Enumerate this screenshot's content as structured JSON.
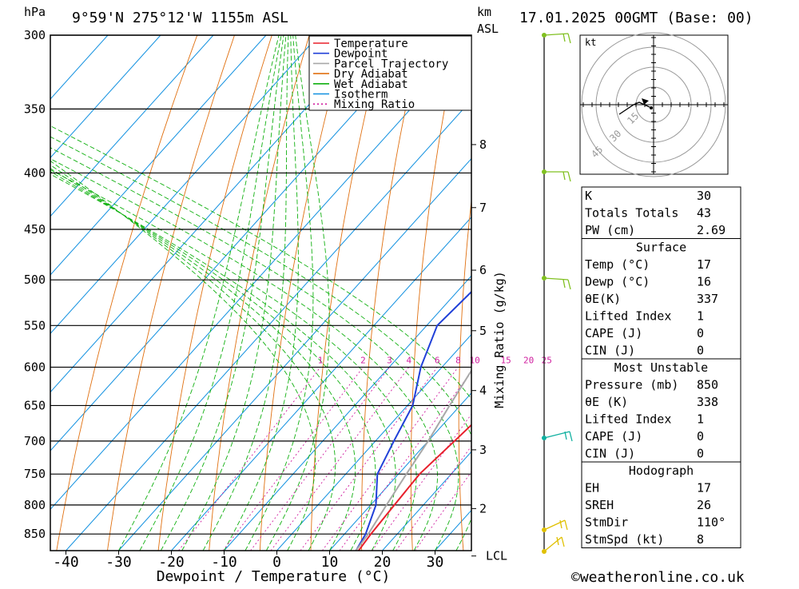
{
  "header": {
    "hpa_label": "hPa",
    "location": "9°59'N  275°12'W  1155m  ASL",
    "km_label": "km",
    "asl_label": "ASL",
    "datetime": "17.01.2025  00GMT  (Base: 00)"
  },
  "chart_data": {
    "type": "line",
    "title": "",
    "xlabel": "Dewpoint / Temperature (°C)",
    "ylabel": "hPa",
    "x_ticks": [
      "-40",
      "-30",
      "-20",
      "-10",
      "0",
      "10",
      "20",
      "30"
    ],
    "p_ticks": [
      "300",
      "350",
      "400",
      "450",
      "500",
      "550",
      "600",
      "650",
      "700",
      "750",
      "800",
      "850"
    ],
    "km_ticks": [
      {
        "label": "8",
        "p": 377
      },
      {
        "label": "7",
        "p": 430
      },
      {
        "label": "6",
        "p": 490
      },
      {
        "label": "5",
        "p": 556
      },
      {
        "label": "4",
        "p": 630
      },
      {
        "label": "3",
        "p": 713
      },
      {
        "label": "2",
        "p": 806
      }
    ],
    "lcl_label": "LCL",
    "mixing_axis_label": "Mixing Ratio (g/kg)",
    "mixing_ratio_labels": [
      "1",
      "2",
      "3",
      "4",
      "6",
      "8",
      "10",
      "15",
      "20",
      "25"
    ],
    "xlim": [
      -44,
      36
    ],
    "plim": [
      300,
      880
    ],
    "series": [
      {
        "name": "Temperature",
        "color": "#e8202c",
        "points": [
          [
            15.5,
            880
          ],
          [
            15,
            850
          ],
          [
            14.5,
            800
          ],
          [
            14,
            750
          ],
          [
            15,
            700
          ],
          [
            16,
            650
          ],
          [
            15,
            600
          ],
          [
            12,
            550
          ],
          [
            7.5,
            500
          ],
          [
            4,
            450
          ],
          [
            1.5,
            400
          ],
          [
            -1,
            350
          ],
          [
            -4,
            300
          ]
        ]
      },
      {
        "name": "Dewpoint",
        "color": "#2040d8",
        "points": [
          [
            15,
            880
          ],
          [
            14,
            850
          ],
          [
            11,
            800
          ],
          [
            6,
            750
          ],
          [
            3.5,
            700
          ],
          [
            1,
            650
          ],
          [
            -4,
            600
          ],
          [
            -8,
            550
          ],
          [
            -7,
            500
          ],
          [
            -6,
            450
          ],
          [
            -8,
            400
          ],
          [
            -11,
            350
          ],
          [
            -25,
            300
          ]
        ]
      },
      {
        "name": "Parcel Trajectory",
        "color": "#a8a8a8",
        "points": [
          [
            15,
            880
          ],
          [
            14.5,
            850
          ],
          [
            13,
            800
          ],
          [
            11.5,
            750
          ],
          [
            10,
            700
          ],
          [
            8,
            650
          ],
          [
            6,
            600
          ],
          [
            4,
            550
          ],
          [
            1,
            500
          ],
          [
            -1.5,
            450
          ],
          [
            -5,
            400
          ],
          [
            -9.5,
            350
          ],
          [
            -16,
            300
          ]
        ]
      }
    ],
    "legend": [
      "Temperature",
      "Dewpoint",
      "Parcel Trajectory",
      "Dry Adiabat",
      "Wet Adiabat",
      "Isotherm",
      "Mixing Ratio"
    ],
    "legend_colors": [
      "#e8202c",
      "#2040d8",
      "#a8a8a8",
      "#e07010",
      "#10b010",
      "#1090e0",
      "#d020a0"
    ],
    "legend_position": "top-center"
  },
  "hodograph": {
    "unit": "kt",
    "ring_labels": [
      "15",
      "30",
      "45"
    ]
  },
  "indices": {
    "rows": [
      {
        "k": "K",
        "v": "30"
      },
      {
        "k": "Totals Totals",
        "v": "43"
      },
      {
        "k": "PW (cm)",
        "v": "2.69"
      }
    ]
  },
  "surface": {
    "title": "Surface",
    "rows": [
      {
        "k": "Temp (°C)",
        "v": "17"
      },
      {
        "k": "Dewp (°C)",
        "v": "16"
      },
      {
        "k": "θE(K)",
        "v": "337"
      },
      {
        "k": "Lifted Index",
        "v": "1"
      },
      {
        "k": "CAPE (J)",
        "v": "0"
      },
      {
        "k": "CIN (J)",
        "v": "0"
      }
    ]
  },
  "most_unstable": {
    "title": "Most Unstable",
    "rows": [
      {
        "k": "Pressure (mb)",
        "v": "850"
      },
      {
        "k": "θE (K)",
        "v": "338"
      },
      {
        "k": "Lifted Index",
        "v": "1"
      },
      {
        "k": "CAPE (J)",
        "v": "0"
      },
      {
        "k": "CIN (J)",
        "v": "0"
      }
    ]
  },
  "hodo_table": {
    "title": "Hodograph",
    "rows": [
      {
        "k": "EH",
        "v": "17"
      },
      {
        "k": "SREH",
        "v": "26"
      },
      {
        "k": "StmDir",
        "v": "110°"
      },
      {
        "k": "StmSpd (kt)",
        "v": "8"
      }
    ]
  },
  "footer": {
    "copyright": "©weatheronline.co.uk"
  },
  "colors": {
    "isotherm": "#1090e0",
    "dry_adiabat": "#e07010",
    "wet_adiabat": "#10b010",
    "mixing_ratio": "#d020a0",
    "wind_green": "#80c020",
    "wind_cyan": "#10b0a0",
    "wind_yellow": "#e0c000"
  }
}
